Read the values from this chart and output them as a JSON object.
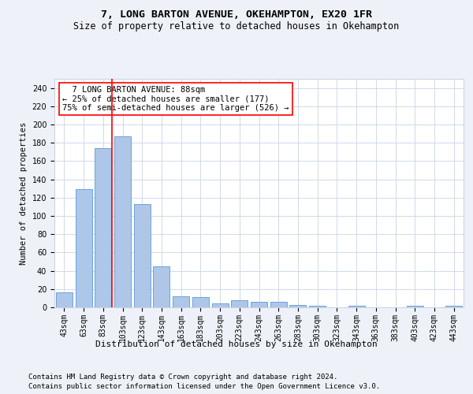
{
  "title1": "7, LONG BARTON AVENUE, OKEHAMPTON, EX20 1FR",
  "title2": "Size of property relative to detached houses in Okehampton",
  "xlabel": "Distribution of detached houses by size in Okehampton",
  "ylabel": "Number of detached properties",
  "categories": [
    "43sqm",
    "63sqm",
    "83sqm",
    "103sqm",
    "123sqm",
    "143sqm",
    "163sqm",
    "183sqm",
    "203sqm",
    "223sqm",
    "243sqm",
    "263sqm",
    "283sqm",
    "303sqm",
    "323sqm",
    "343sqm",
    "363sqm",
    "383sqm",
    "403sqm",
    "423sqm",
    "443sqm"
  ],
  "values": [
    16,
    129,
    174,
    187,
    113,
    45,
    12,
    11,
    4,
    8,
    6,
    6,
    3,
    2,
    0,
    2,
    0,
    0,
    2,
    0,
    2
  ],
  "bar_color": "#aec6e8",
  "bar_edge_color": "#5b9bd5",
  "vline_x": 2.45,
  "vline_color": "red",
  "annotation_text": "  7 LONG BARTON AVENUE: 88sqm\n← 25% of detached houses are smaller (177)\n75% of semi-detached houses are larger (526) →",
  "annotation_box_color": "white",
  "annotation_box_edge": "red",
  "footer1": "Contains HM Land Registry data © Crown copyright and database right 2024.",
  "footer2": "Contains public sector information licensed under the Open Government Licence v3.0.",
  "bg_color": "#eef2f8",
  "plot_bg_color": "white",
  "ylim": [
    0,
    250
  ],
  "yticks": [
    0,
    20,
    40,
    60,
    80,
    100,
    120,
    140,
    160,
    180,
    200,
    220,
    240
  ],
  "title1_fontsize": 9.5,
  "title2_fontsize": 8.5,
  "xlabel_fontsize": 8,
  "ylabel_fontsize": 7.5,
  "tick_fontsize": 7,
  "annotation_fontsize": 7.5,
  "footer_fontsize": 6.5
}
